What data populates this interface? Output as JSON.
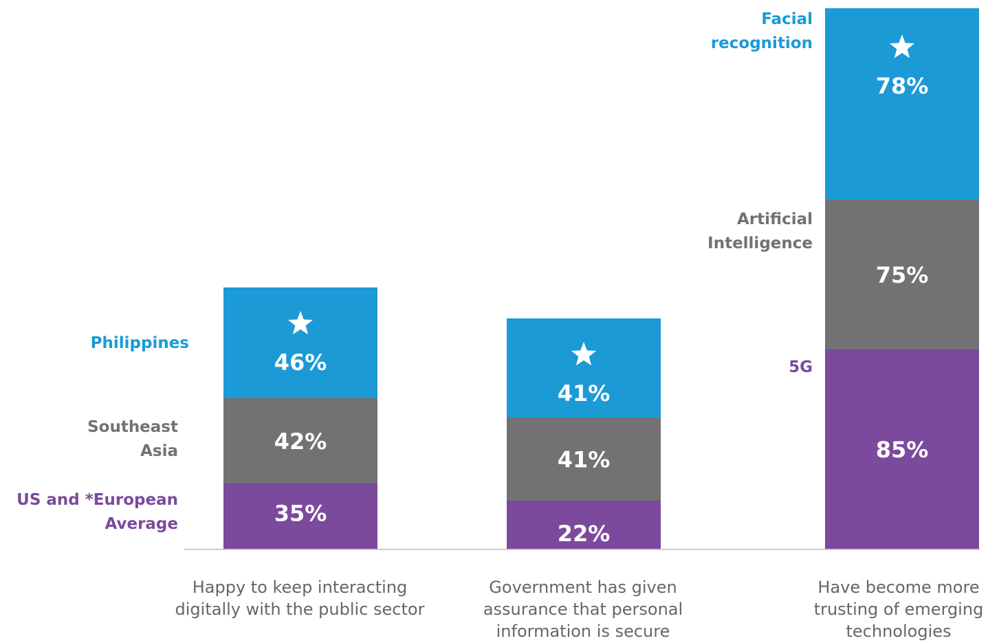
{
  "chart_data": {
    "type": "bar",
    "stacked_visual": true,
    "categories": [
      "Happy to keep interacting digitally with the public sector",
      "Government has given assurance that personal information is secure",
      "Have become more trusting of emerging technologies"
    ],
    "category_label_lines": [
      [
        "Happy to keep interacting",
        "digitally with the public sector"
      ],
      [
        "Government has given",
        "assurance that personal",
        "information is secure"
      ],
      [
        "Have become more",
        "trusting of emerging",
        "technologies"
      ]
    ],
    "series": [
      {
        "name": "US and *European Average",
        "values": [
          35,
          22,
          null
        ],
        "color": "#7b4a9c"
      },
      {
        "name": "Southeast Asia",
        "values": [
          42,
          41,
          null
        ],
        "color": "#727174"
      },
      {
        "name": "Philippines",
        "values": [
          46,
          41,
          null
        ],
        "color": "#1b9ad6"
      }
    ],
    "third_bar_segments": [
      {
        "name": "5G",
        "value": 85,
        "color": "#7b4a9c"
      },
      {
        "name": "Artificial Intelligence",
        "value": 75,
        "color": "#727174"
      },
      {
        "name": "Facial recognition",
        "value": 78,
        "color": "#1b9ad6"
      }
    ],
    "value_labels": [
      [
        "35%",
        "42%",
        "46%"
      ],
      [
        "22%",
        "41%",
        "41%"
      ],
      [
        "85%",
        "75%",
        "78%"
      ]
    ],
    "series_labels_left": [
      {
        "lines": [
          "US and *European",
          "Average"
        ],
        "color": "#7b4a9c"
      },
      {
        "lines": [
          "Southeast",
          "Asia"
        ],
        "color": "#727174"
      },
      {
        "lines": [
          "Philippines"
        ],
        "color": "#1b9ad6"
      }
    ],
    "series_labels_third": [
      {
        "lines": [
          "5G"
        ],
        "color": "#7b4a9c"
      },
      {
        "lines": [
          "Artificial",
          "Intelligence"
        ],
        "color": "#727174"
      },
      {
        "lines": [
          "Facial",
          "recognition"
        ],
        "color": "#1b9ad6"
      }
    ],
    "highlight_icon": "star-icon",
    "title": "",
    "xlabel": "",
    "ylabel": "",
    "grid": false,
    "colors": {
      "purple": "#7b4a9c",
      "gray": "#727174",
      "blue": "#1b9ad6",
      "baseline": "#cccccc",
      "category_text": "#666666"
    }
  }
}
